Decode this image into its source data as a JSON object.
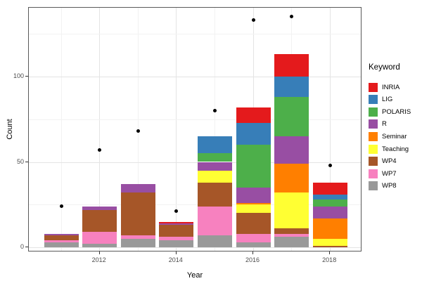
{
  "figure": {
    "background": "#ffffff"
  },
  "chart_data": {
    "type": "bar",
    "subtype": "stacked-bars-with-scatter-points",
    "title": "",
    "xlabel": "Year",
    "ylabel": "Count",
    "legend_title": "Keyword",
    "legend_position": "right",
    "grid": true,
    "x_years": [
      2011,
      2012,
      2013,
      2014,
      2015,
      2016,
      2017,
      2018
    ],
    "x_ticks": [
      2012,
      2014,
      2016,
      2018
    ],
    "x_tick_labels": [
      "2012",
      "2014",
      "2016",
      "2018"
    ],
    "y_ticks": [
      0,
      50,
      100
    ],
    "y_tick_labels": [
      "0",
      "50",
      "100"
    ],
    "y_minor_ticks": [
      25,
      75,
      125
    ],
    "ylim": [
      -3,
      143
    ],
    "series": [
      {
        "name": "INRIA",
        "color": "#E41A1C",
        "values": [
          0,
          0,
          0,
          1,
          0,
          9,
          13,
          7
        ]
      },
      {
        "name": "LIG",
        "color": "#377EB8",
        "values": [
          0,
          0,
          0,
          0,
          10,
          13,
          12,
          3
        ]
      },
      {
        "name": "POLARIS",
        "color": "#4DAF4A",
        "values": [
          0,
          0,
          0,
          0,
          5,
          25,
          23,
          4
        ]
      },
      {
        "name": "R",
        "color": "#984EA3",
        "values": [
          1,
          2,
          5,
          1,
          5,
          9,
          16,
          7
        ]
      },
      {
        "name": "Seminar",
        "color": "#FF7F00",
        "values": [
          0,
          0,
          0,
          0,
          0,
          1,
          17,
          12
        ]
      },
      {
        "name": "Teaching",
        "color": "#FFFF33",
        "values": [
          0,
          0,
          0,
          0,
          7,
          5,
          21,
          4
        ]
      },
      {
        "name": "WP4",
        "color": "#A65628",
        "values": [
          3,
          13,
          25,
          7,
          14,
          12,
          3,
          1
        ]
      },
      {
        "name": "WP7",
        "color": "#F781BF",
        "values": [
          1,
          7,
          2,
          2,
          17,
          5,
          2,
          0
        ]
      },
      {
        "name": "WP8",
        "color": "#999999",
        "values": [
          3,
          2,
          5,
          4,
          7,
          3,
          6,
          0
        ]
      }
    ],
    "stack_order_bottom_to_top": [
      "WP8",
      "WP7",
      "WP4",
      "Teaching",
      "Seminar",
      "R",
      "POLARIS",
      "LIG",
      "INRIA"
    ],
    "bar_totals": [
      8,
      24,
      37,
      15,
      65,
      82,
      113,
      38
    ],
    "points": {
      "name": "yearly-total-dots",
      "color": "#000000",
      "values": [
        24,
        57,
        68,
        21,
        80,
        133,
        135,
        48
      ]
    }
  }
}
